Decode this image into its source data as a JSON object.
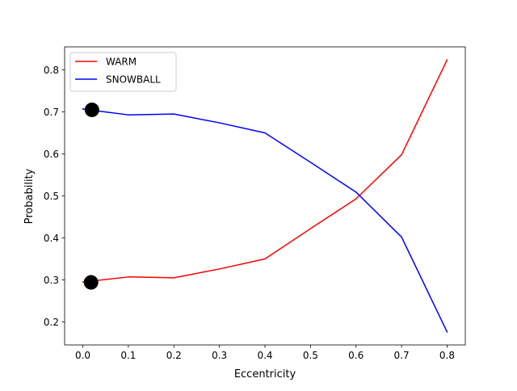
{
  "chart_data": {
    "type": "line",
    "xlabel": "Eccentricity",
    "ylabel": "Probability",
    "xlim": [
      -0.04,
      0.84
    ],
    "ylim": [
      0.145,
      0.855
    ],
    "xticks": [
      0.0,
      0.1,
      0.2,
      0.3,
      0.4,
      0.5,
      0.6,
      0.7,
      0.8
    ],
    "xtick_labels": [
      "0.0",
      "0.1",
      "0.2",
      "0.3",
      "0.4",
      "0.5",
      "0.6",
      "0.7",
      "0.8"
    ],
    "yticks": [
      0.2,
      0.3,
      0.4,
      0.5,
      0.6,
      0.7,
      0.8
    ],
    "ytick_labels": [
      "0.2",
      "0.3",
      "0.4",
      "0.5",
      "0.6",
      "0.7",
      "0.8"
    ],
    "grid": false,
    "legend_position": "upper-left",
    "series": [
      {
        "name": "WARM",
        "color": "#ff0000",
        "x": [
          0.0,
          0.1,
          0.2,
          0.3,
          0.4,
          0.5,
          0.6,
          0.7,
          0.8
        ],
        "y": [
          0.295,
          0.307,
          0.305,
          0.326,
          0.35,
          0.422,
          0.493,
          0.598,
          0.824
        ]
      },
      {
        "name": "SNOWBALL",
        "color": "#0000ff",
        "x": [
          0.0,
          0.1,
          0.2,
          0.3,
          0.4,
          0.5,
          0.6,
          0.7,
          0.8
        ],
        "y": [
          0.707,
          0.693,
          0.695,
          0.674,
          0.65,
          0.58,
          0.509,
          0.402,
          0.176
        ]
      }
    ],
    "markers": [
      {
        "x": 0.02,
        "y": 0.705,
        "color": "#000000"
      },
      {
        "x": 0.018,
        "y": 0.294,
        "color": "#000000"
      }
    ]
  }
}
